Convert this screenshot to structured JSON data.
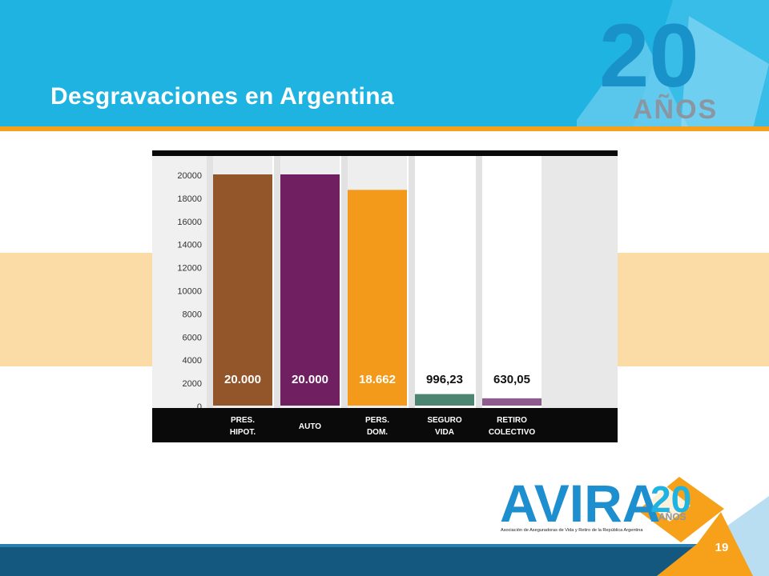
{
  "slide": {
    "title": "Desgravaciones en Argentina",
    "page_number": "19"
  },
  "branding": {
    "anniversary_number": "20",
    "anniversary_word": "AÑOS",
    "logo_text": "AVIRA",
    "logo_subtitle": "Asociación de Aseguradoras de Vida y Retiro de la República Argentina"
  },
  "colors": {
    "header_blue": "#1fb3e2",
    "accent_orange": "#f7a11a",
    "band_peach": "#fcdca6",
    "footer_navy": "#14587f"
  },
  "chart_data": {
    "type": "bar",
    "categories": [
      [
        "PRES.",
        "HIPOT."
      ],
      [
        "AUTO"
      ],
      [
        "PERS.",
        "DOM."
      ],
      [
        "SEGURO",
        "VIDA"
      ],
      [
        "RETIRO",
        "COLECTIVO"
      ]
    ],
    "values": [
      20000,
      20000,
      18662,
      996.23,
      630.05
    ],
    "data_labels": [
      "20.000",
      "20.000",
      "18.662",
      "996,23",
      "630,05"
    ],
    "bar_colors": [
      "#93552a",
      "#701f61",
      "#f39a1b",
      "#4e8572",
      "#8e5b8e"
    ],
    "label_colors": [
      "#ffffff",
      "#ffffff",
      "#ffffff",
      "#111111",
      "#111111"
    ],
    "yticks": [
      0,
      2000,
      4000,
      6000,
      8000,
      10000,
      12000,
      14000,
      16000,
      18000,
      20000
    ],
    "ylim": [
      0,
      21000
    ],
    "grid": false,
    "title": "",
    "xlabel": "",
    "ylabel": ""
  }
}
